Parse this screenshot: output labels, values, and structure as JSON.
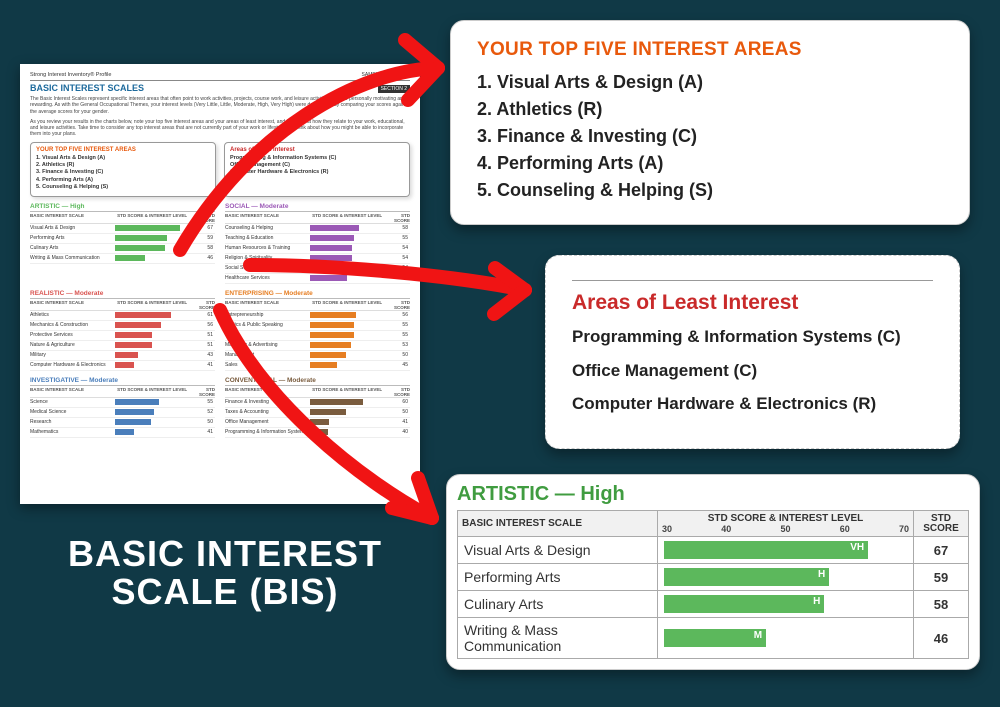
{
  "slide_title_line1": "BASIC INTEREST",
  "slide_title_line2": "SCALE (BIS)",
  "colors": {
    "artistic": "#5cb85c",
    "realistic": "#d9534f",
    "investigative": "#4a7ebb",
    "social": "#9b59b6",
    "enterprising": "#e67e22",
    "conventional": "#7a5c3e",
    "arrow": "#f01414",
    "orange_heading": "#e8590c",
    "red_heading": "#c92a2a"
  },
  "report": {
    "profile_name": "Strong Interest Inventory® Profile",
    "page_info": "SAMPLE | M | Page 4",
    "title": "BASIC INTEREST SCALES",
    "section_band": "SECTION 2",
    "intro1": "The Basic Interest Scales represent specific interest areas that often point to work activities, projects, course work, and leisure activities that are personally motivating and rewarding. As with the General Occupational Themes, your interest levels (Very Little, Little, Moderate, High, Very High) were determined by comparing your scores against the average scores for your gender.",
    "intro2": "As you review your results in the charts below, note your top five interest areas and your areas of least interest, and think about how they relate to your work, educational, and leisure activities. Take time to consider any top interest areas that are not currently part of your work or lifestyle and think about how you might be able to incorporate them into your plans.",
    "boxes": {
      "top5_title": "YOUR TOP FIVE INTEREST AREAS",
      "top5": [
        "1. Visual Arts & Design (A)",
        "2. Athletics (R)",
        "3. Finance & Investing (C)",
        "4. Performing Arts (A)",
        "5. Counseling & Helping (S)"
      ],
      "least_title": "Areas of Least Interest",
      "least": [
        "Programming & Information Systems (C)",
        "Office Management (C)",
        "Computer Hardware & Electronics (R)"
      ]
    },
    "col_headers": [
      "BASIC INTEREST SCALE",
      "STD SCORE & INTEREST LEVEL",
      "STD SCORE"
    ],
    "axis_ticks_small": [
      "30",
      "40",
      "50",
      "60",
      "70"
    ],
    "categories": [
      {
        "key": "artistic",
        "title": "ARTISTIC — High",
        "color": "#5cb85c",
        "rows": [
          {
            "label": "Visual Arts & Design",
            "score": 67,
            "pct": 88
          },
          {
            "label": "Performing Arts",
            "score": 59,
            "pct": 70
          },
          {
            "label": "Culinary Arts",
            "score": 58,
            "pct": 67
          },
          {
            "label": "Writing & Mass Communication",
            "score": 46,
            "pct": 40
          }
        ]
      },
      {
        "key": "social",
        "title": "SOCIAL — Moderate",
        "color": "#9b59b6",
        "rows": [
          {
            "label": "Counseling & Helping",
            "score": 58,
            "pct": 66
          },
          {
            "label": "Teaching & Education",
            "score": 55,
            "pct": 60
          },
          {
            "label": "Human Resources & Training",
            "score": 54,
            "pct": 57
          },
          {
            "label": "Religion & Spirituality",
            "score": 54,
            "pct": 57
          },
          {
            "label": "Social Sciences",
            "score": 54,
            "pct": 57
          },
          {
            "label": "Healthcare Services",
            "score": 51,
            "pct": 50
          }
        ]
      },
      {
        "key": "realistic",
        "title": "REALISTIC — Moderate",
        "color": "#d9534f",
        "rows": [
          {
            "label": "Athletics",
            "score": 61,
            "pct": 75
          },
          {
            "label": "Mechanics & Construction",
            "score": 56,
            "pct": 62
          },
          {
            "label": "Protective Services",
            "score": 51,
            "pct": 50
          },
          {
            "label": "Nature & Agriculture",
            "score": 51,
            "pct": 50
          },
          {
            "label": "Military",
            "score": 43,
            "pct": 31
          },
          {
            "label": "Computer Hardware & Electronics",
            "score": 41,
            "pct": 26
          }
        ]
      },
      {
        "key": "enterprising",
        "title": "ENTERPRISING — Moderate",
        "color": "#e67e22",
        "rows": [
          {
            "label": "Entrepreneurship",
            "score": 56,
            "pct": 62
          },
          {
            "label": "Politics & Public Speaking",
            "score": 55,
            "pct": 60
          },
          {
            "label": "Law",
            "score": 55,
            "pct": 60
          },
          {
            "label": "Marketing & Advertising",
            "score": 53,
            "pct": 55
          },
          {
            "label": "Management",
            "score": 50,
            "pct": 48
          },
          {
            "label": "Sales",
            "score": 45,
            "pct": 36
          }
        ]
      },
      {
        "key": "investigative",
        "title": "INVESTIGATIVE — Moderate",
        "color": "#4a7ebb",
        "rows": [
          {
            "label": "Science",
            "score": 55,
            "pct": 60
          },
          {
            "label": "Medical Science",
            "score": 52,
            "pct": 52
          },
          {
            "label": "Research",
            "score": 50,
            "pct": 48
          },
          {
            "label": "Mathematics",
            "score": 41,
            "pct": 26
          }
        ]
      },
      {
        "key": "conventional",
        "title": "CONVENTIONAL — Moderate",
        "color": "#7a5c3e",
        "rows": [
          {
            "label": "Finance & Investing",
            "score": 60,
            "pct": 72
          },
          {
            "label": "Taxes & Accounting",
            "score": 50,
            "pct": 48
          },
          {
            "label": "Office Management",
            "score": 41,
            "pct": 26
          },
          {
            "label": "Programming & Information Systems",
            "score": 40,
            "pct": 24
          }
        ]
      }
    ]
  },
  "top5_card": {
    "title": "YOUR TOP FIVE INTEREST AREAS",
    "items": [
      "1. Visual Arts & Design (A)",
      "2. Athletics (R)",
      "3. Finance & Investing (C)",
      "4. Performing Arts (A)",
      "5. Counseling & Helping (S)"
    ]
  },
  "least_card": {
    "title": "Areas of Least Interest",
    "items": [
      "Programming & Information Systems (C)",
      "Office Management (C)",
      "Computer Hardware & Electronics (R)"
    ]
  },
  "table_card": {
    "title": "ARTISTIC — High",
    "title_color": "#409c40",
    "header_name": "BASIC INTEREST SCALE",
    "header_axis": "STD SCORE & INTEREST LEVEL",
    "header_score": "STD SCORE",
    "axis_ticks": [
      "30",
      "40",
      "50",
      "60",
      "70"
    ],
    "axis_min": 25,
    "axis_max": 75,
    "bar_color": "#5cb85c",
    "rows": [
      {
        "label": "Visual Arts & Design",
        "score": 67,
        "level": "VH"
      },
      {
        "label": "Performing Arts",
        "score": 59,
        "level": "H"
      },
      {
        "label": "Culinary Arts",
        "score": 58,
        "level": "H"
      },
      {
        "label": "Writing & Mass Communication",
        "score": 46,
        "level": "M"
      }
    ]
  }
}
